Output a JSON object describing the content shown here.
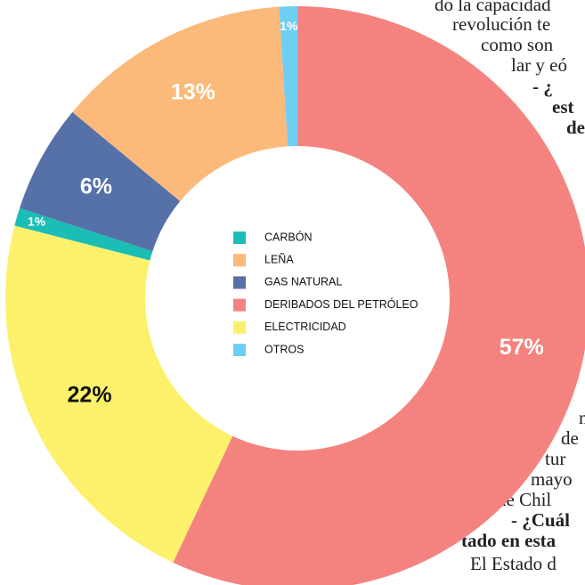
{
  "chart_data": {
    "type": "donut",
    "categories": [
      "DERIBADOS DEL PETRÓLEO",
      "ELECTRICIDAD",
      "CARBÓN",
      "GAS NATURAL",
      "LEÑA",
      "OTROS"
    ],
    "values": [
      57,
      22,
      1,
      6,
      13,
      1
    ],
    "value_labels": [
      "57%",
      "22%",
      "1%",
      "6%",
      "13%",
      "1%"
    ],
    "colors": [
      "#f4837f",
      "#fdf16c",
      "#1cbdb5",
      "#5670a8",
      "#fbb97a",
      "#6ecff5"
    ],
    "legend_order": [
      2,
      4,
      3,
      0,
      1,
      5
    ]
  },
  "background_text": [
    "do la capacidad",
    "revolución te",
    "como son",
    "lar y eó",
    "- ¿",
    "est",
    "de",
    "n",
    "de",
    "tur",
    "mayo",
    "de Chil",
    "- ¿Cuál",
    "tado en esta",
    "El Estado d"
  ]
}
